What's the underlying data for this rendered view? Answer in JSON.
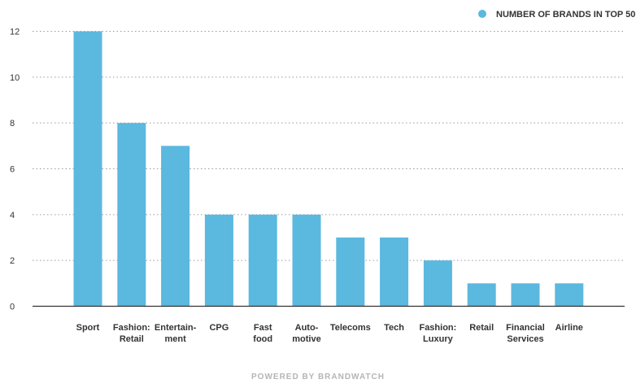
{
  "chart_data": {
    "type": "bar",
    "categories": [
      [
        "Sport"
      ],
      [
        "Fashion:",
        "Retail"
      ],
      [
        "Entertain-",
        "ment"
      ],
      [
        "CPG"
      ],
      [
        "Fast",
        "food"
      ],
      [
        "Auto-",
        "motive"
      ],
      [
        "Telecoms"
      ],
      [
        "Tech"
      ],
      [
        "Fashion:",
        "Luxury"
      ],
      [
        "Retail"
      ],
      [
        "Financial",
        "Services"
      ],
      [
        "Airline"
      ]
    ],
    "series": [
      {
        "name": "NUMBER OF BRANDS IN TOP 50",
        "values": [
          12,
          8,
          7,
          4,
          4,
          4,
          3,
          3,
          2,
          1,
          1,
          1
        ]
      }
    ],
    "ylim": [
      0,
      12
    ],
    "yticks": [
      0,
      2,
      4,
      6,
      8,
      10,
      12
    ],
    "grid": true,
    "legend_position": "top-right",
    "bar_color": "#5bb8de"
  },
  "footer": "POWERED BY BRANDWATCH"
}
